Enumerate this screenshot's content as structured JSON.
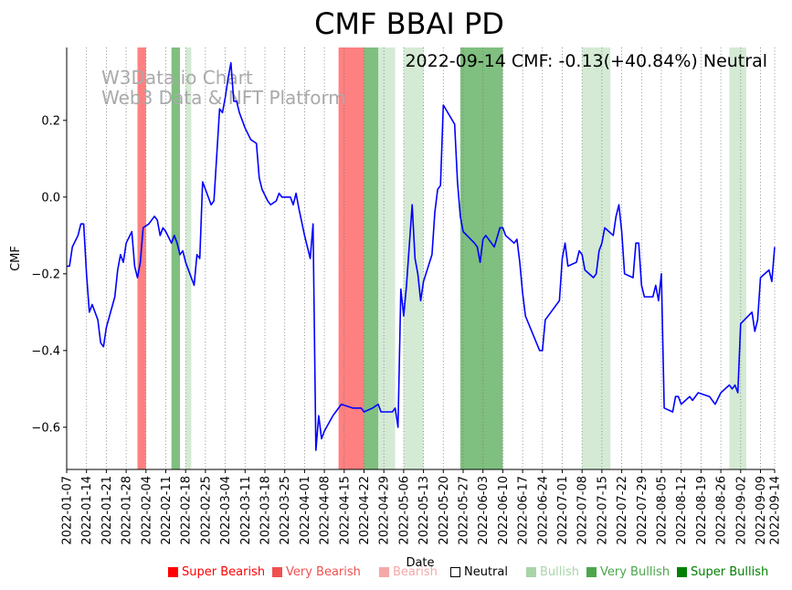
{
  "chart_data": {
    "type": "line",
    "title": "CMF BBAI PD",
    "annotation": "2022-09-14 CMF: -0.13(+40.84%) Neutral",
    "watermark": [
      "W3Data.io Chart",
      "Web3 Data & NFT Platform"
    ],
    "xlabel": "Date",
    "ylabel": "CMF",
    "ylim": [
      -0.71,
      0.39
    ],
    "yticks": [
      0.2,
      0.0,
      -0.2,
      -0.4,
      -0.6
    ],
    "ytick_labels": [
      "0.2",
      "0.0",
      "−0.2",
      "−0.4",
      "−0.6"
    ],
    "x_range": [
      "2022-01-07",
      "2022-09-14"
    ],
    "xtick_labels": [
      "2022-01-07",
      "2022-01-14",
      "2022-01-21",
      "2022-01-28",
      "2022-02-04",
      "2022-02-11",
      "2022-02-18",
      "2022-02-25",
      "2022-03-04",
      "2022-03-11",
      "2022-03-18",
      "2022-03-25",
      "2022-04-01",
      "2022-04-08",
      "2022-04-15",
      "2022-04-22",
      "2022-04-29",
      "2022-05-06",
      "2022-05-13",
      "2022-05-20",
      "2022-05-27",
      "2022-06-03",
      "2022-06-10",
      "2022-06-17",
      "2022-06-24",
      "2022-07-01",
      "2022-07-08",
      "2022-07-15",
      "2022-07-22",
      "2022-07-29",
      "2022-08-05",
      "2022-08-12",
      "2022-08-19",
      "2022-08-26",
      "2022-09-02",
      "2022-09-09",
      "2022-09-14"
    ],
    "series": [
      {
        "name": "CMF",
        "color": "#0000ff",
        "points": [
          [
            "2022-01-07",
            -0.18
          ],
          [
            "2022-01-08",
            -0.18
          ],
          [
            "2022-01-09",
            -0.13
          ],
          [
            "2022-01-11",
            -0.1
          ],
          [
            "2022-01-12",
            -0.07
          ],
          [
            "2022-01-13",
            -0.07
          ],
          [
            "2022-01-14",
            -0.2
          ],
          [
            "2022-01-15",
            -0.3
          ],
          [
            "2022-01-16",
            -0.28
          ],
          [
            "2022-01-18",
            -0.32
          ],
          [
            "2022-01-19",
            -0.38
          ],
          [
            "2022-01-20",
            -0.39
          ],
          [
            "2022-01-21",
            -0.34
          ],
          [
            "2022-01-24",
            -0.26
          ],
          [
            "2022-01-25",
            -0.19
          ],
          [
            "2022-01-26",
            -0.15
          ],
          [
            "2022-01-27",
            -0.17
          ],
          [
            "2022-01-28",
            -0.12
          ],
          [
            "2022-01-30",
            -0.09
          ],
          [
            "2022-01-31",
            -0.18
          ],
          [
            "2022-02-01",
            -0.21
          ],
          [
            "2022-02-02",
            -0.17
          ],
          [
            "2022-02-03",
            -0.08
          ],
          [
            "2022-02-05",
            -0.07
          ],
          [
            "2022-02-07",
            -0.05
          ],
          [
            "2022-02-08",
            -0.06
          ],
          [
            "2022-02-09",
            -0.1
          ],
          [
            "2022-02-10",
            -0.08
          ],
          [
            "2022-02-11",
            -0.09
          ],
          [
            "2022-02-13",
            -0.12
          ],
          [
            "2022-02-14",
            -0.1
          ],
          [
            "2022-02-15",
            -0.12
          ],
          [
            "2022-02-16",
            -0.15
          ],
          [
            "2022-02-17",
            -0.14
          ],
          [
            "2022-02-18",
            -0.17
          ],
          [
            "2022-02-21",
            -0.23
          ],
          [
            "2022-02-22",
            -0.15
          ],
          [
            "2022-02-23",
            -0.16
          ],
          [
            "2022-02-24",
            0.04
          ],
          [
            "2022-02-25",
            0.02
          ],
          [
            "2022-02-27",
            -0.02
          ],
          [
            "2022-02-28",
            -0.01
          ],
          [
            "2022-03-01",
            0.11
          ],
          [
            "2022-03-02",
            0.23
          ],
          [
            "2022-03-03",
            0.22
          ],
          [
            "2022-03-04",
            0.26
          ],
          [
            "2022-03-05",
            0.31
          ],
          [
            "2022-03-06",
            0.35
          ],
          [
            "2022-03-07",
            0.25
          ],
          [
            "2022-03-08",
            0.25
          ],
          [
            "2022-03-09",
            0.22
          ],
          [
            "2022-03-11",
            0.18
          ],
          [
            "2022-03-13",
            0.15
          ],
          [
            "2022-03-15",
            0.14
          ],
          [
            "2022-03-16",
            0.05
          ],
          [
            "2022-03-17",
            0.02
          ],
          [
            "2022-03-19",
            -0.01
          ],
          [
            "2022-03-20",
            -0.02
          ],
          [
            "2022-03-22",
            -0.01
          ],
          [
            "2022-03-23",
            0.01
          ],
          [
            "2022-03-24",
            0.0
          ],
          [
            "2022-03-27",
            -0.0
          ],
          [
            "2022-03-28",
            -0.02
          ],
          [
            "2022-03-29",
            0.01
          ],
          [
            "2022-03-30",
            -0.03
          ],
          [
            "2022-04-01",
            -0.1
          ],
          [
            "2022-04-03",
            -0.16
          ],
          [
            "2022-04-04",
            -0.07
          ],
          [
            "2022-04-05",
            -0.66
          ],
          [
            "2022-04-06",
            -0.57
          ],
          [
            "2022-04-07",
            -0.63
          ],
          [
            "2022-04-08",
            -0.61
          ],
          [
            "2022-04-11",
            -0.57
          ],
          [
            "2022-04-12",
            -0.56
          ],
          [
            "2022-04-14",
            -0.54
          ],
          [
            "2022-04-18",
            -0.55
          ],
          [
            "2022-04-21",
            -0.55
          ],
          [
            "2022-04-22",
            -0.56
          ],
          [
            "2022-04-25",
            -0.55
          ],
          [
            "2022-04-27",
            -0.54
          ],
          [
            "2022-04-28",
            -0.56
          ],
          [
            "2022-05-02",
            -0.56
          ],
          [
            "2022-05-03",
            -0.55
          ],
          [
            "2022-05-04",
            -0.6
          ],
          [
            "2022-05-05",
            -0.24
          ],
          [
            "2022-05-06",
            -0.31
          ],
          [
            "2022-05-07",
            -0.23
          ],
          [
            "2022-05-09",
            -0.02
          ],
          [
            "2022-05-10",
            -0.16
          ],
          [
            "2022-05-11",
            -0.2
          ],
          [
            "2022-05-12",
            -0.27
          ],
          [
            "2022-05-13",
            -0.22
          ],
          [
            "2022-05-16",
            -0.15
          ],
          [
            "2022-05-17",
            -0.04
          ],
          [
            "2022-05-18",
            0.02
          ],
          [
            "2022-05-19",
            0.03
          ],
          [
            "2022-05-20",
            0.24
          ],
          [
            "2022-05-24",
            0.19
          ],
          [
            "2022-05-25",
            0.04
          ],
          [
            "2022-05-26",
            -0.05
          ],
          [
            "2022-05-27",
            -0.09
          ],
          [
            "2022-05-31",
            -0.12
          ],
          [
            "2022-06-01",
            -0.13
          ],
          [
            "2022-06-02",
            -0.17
          ],
          [
            "2022-06-03",
            -0.11
          ],
          [
            "2022-06-04",
            -0.1
          ],
          [
            "2022-06-07",
            -0.13
          ],
          [
            "2022-06-09",
            -0.08
          ],
          [
            "2022-06-10",
            -0.08
          ],
          [
            "2022-06-11",
            -0.1
          ],
          [
            "2022-06-14",
            -0.12
          ],
          [
            "2022-06-15",
            -0.11
          ],
          [
            "2022-06-16",
            -0.17
          ],
          [
            "2022-06-17",
            -0.25
          ],
          [
            "2022-06-18",
            -0.31
          ],
          [
            "2022-06-23",
            -0.4
          ],
          [
            "2022-06-24",
            -0.4
          ],
          [
            "2022-06-25",
            -0.32
          ],
          [
            "2022-06-27",
            -0.3
          ],
          [
            "2022-06-29",
            -0.28
          ],
          [
            "2022-06-30",
            -0.27
          ],
          [
            "2022-07-01",
            -0.16
          ],
          [
            "2022-07-02",
            -0.12
          ],
          [
            "2022-07-03",
            -0.18
          ],
          [
            "2022-07-06",
            -0.17
          ],
          [
            "2022-07-07",
            -0.14
          ],
          [
            "2022-07-08",
            -0.15
          ],
          [
            "2022-07-09",
            -0.19
          ],
          [
            "2022-07-12",
            -0.21
          ],
          [
            "2022-07-13",
            -0.2
          ],
          [
            "2022-07-14",
            -0.14
          ],
          [
            "2022-07-15",
            -0.12
          ],
          [
            "2022-07-16",
            -0.08
          ],
          [
            "2022-07-19",
            -0.1
          ],
          [
            "2022-07-20",
            -0.05
          ],
          [
            "2022-07-21",
            -0.02
          ],
          [
            "2022-07-22",
            -0.09
          ],
          [
            "2022-07-23",
            -0.2
          ],
          [
            "2022-07-26",
            -0.21
          ],
          [
            "2022-07-27",
            -0.12
          ],
          [
            "2022-07-28",
            -0.12
          ],
          [
            "2022-07-29",
            -0.23
          ],
          [
            "2022-07-30",
            -0.26
          ],
          [
            "2022-08-02",
            -0.26
          ],
          [
            "2022-08-03",
            -0.23
          ],
          [
            "2022-08-04",
            -0.27
          ],
          [
            "2022-08-05",
            -0.2
          ],
          [
            "2022-08-06",
            -0.55
          ],
          [
            "2022-08-09",
            -0.56
          ],
          [
            "2022-08-10",
            -0.52
          ],
          [
            "2022-08-11",
            -0.52
          ],
          [
            "2022-08-12",
            -0.54
          ],
          [
            "2022-08-15",
            -0.52
          ],
          [
            "2022-08-16",
            -0.53
          ],
          [
            "2022-08-18",
            -0.51
          ],
          [
            "2022-08-22",
            -0.52
          ],
          [
            "2022-08-23",
            -0.53
          ],
          [
            "2022-08-24",
            -0.54
          ],
          [
            "2022-08-26",
            -0.51
          ],
          [
            "2022-08-29",
            -0.49
          ],
          [
            "2022-08-30",
            -0.5
          ],
          [
            "2022-08-31",
            -0.49
          ],
          [
            "2022-09-01",
            -0.51
          ],
          [
            "2022-09-02",
            -0.33
          ],
          [
            "2022-09-06",
            -0.3
          ],
          [
            "2022-09-07",
            -0.35
          ],
          [
            "2022-09-08",
            -0.32
          ],
          [
            "2022-09-09",
            -0.21
          ],
          [
            "2022-09-12",
            -0.19
          ],
          [
            "2022-09-13",
            -0.22
          ],
          [
            "2022-09-14",
            -0.13
          ]
        ]
      }
    ],
    "bands": [
      {
        "start": "2022-02-01",
        "end": "2022-02-04",
        "category": "very_bearish"
      },
      {
        "start": "2022-02-13",
        "end": "2022-02-16",
        "category": "very_bullish"
      },
      {
        "start": "2022-02-18",
        "end": "2022-02-20",
        "category": "bullish"
      },
      {
        "start": "2022-04-13",
        "end": "2022-04-22",
        "category": "very_bearish"
      },
      {
        "start": "2022-04-22",
        "end": "2022-04-27",
        "category": "very_bullish"
      },
      {
        "start": "2022-04-27",
        "end": "2022-05-03",
        "category": "bullish"
      },
      {
        "start": "2022-05-06",
        "end": "2022-05-13",
        "category": "bullish"
      },
      {
        "start": "2022-05-26",
        "end": "2022-06-10",
        "category": "super_bullish"
      },
      {
        "start": "2022-07-08",
        "end": "2022-07-18",
        "category": "bullish"
      },
      {
        "start": "2022-08-29",
        "end": "2022-09-04",
        "category": "bullish"
      }
    ],
    "legend": [
      {
        "key": "super_bearish",
        "label": "Super Bearish",
        "color": "#ff0000",
        "swatch_color": "#ff0000"
      },
      {
        "key": "very_bearish",
        "label": "Very Bearish",
        "color": "#f05050",
        "swatch_color": "#f05050"
      },
      {
        "key": "bearish",
        "label": "Bearish",
        "color": "#f5a8a8",
        "swatch_color": "#f5a8a8"
      },
      {
        "key": "neutral",
        "label": "Neutral",
        "color": "#000000",
        "swatch_color": "#ffffff"
      },
      {
        "key": "bullish",
        "label": "Bullish",
        "color": "#a8d5a8",
        "swatch_color": "#a8d5a8"
      },
      {
        "key": "very_bullish",
        "label": "Very Bullish",
        "color": "#4ca64c",
        "swatch_color": "#4ca64c"
      },
      {
        "key": "super_bullish",
        "label": "Super Bullish",
        "color": "#008000",
        "swatch_color": "#008000"
      }
    ],
    "band_colors": {
      "very_bearish": "#ff8080",
      "bullish": "#d4ead4",
      "very_bullish": "#7fbf7f",
      "super_bullish": "#7fbf7f"
    }
  }
}
